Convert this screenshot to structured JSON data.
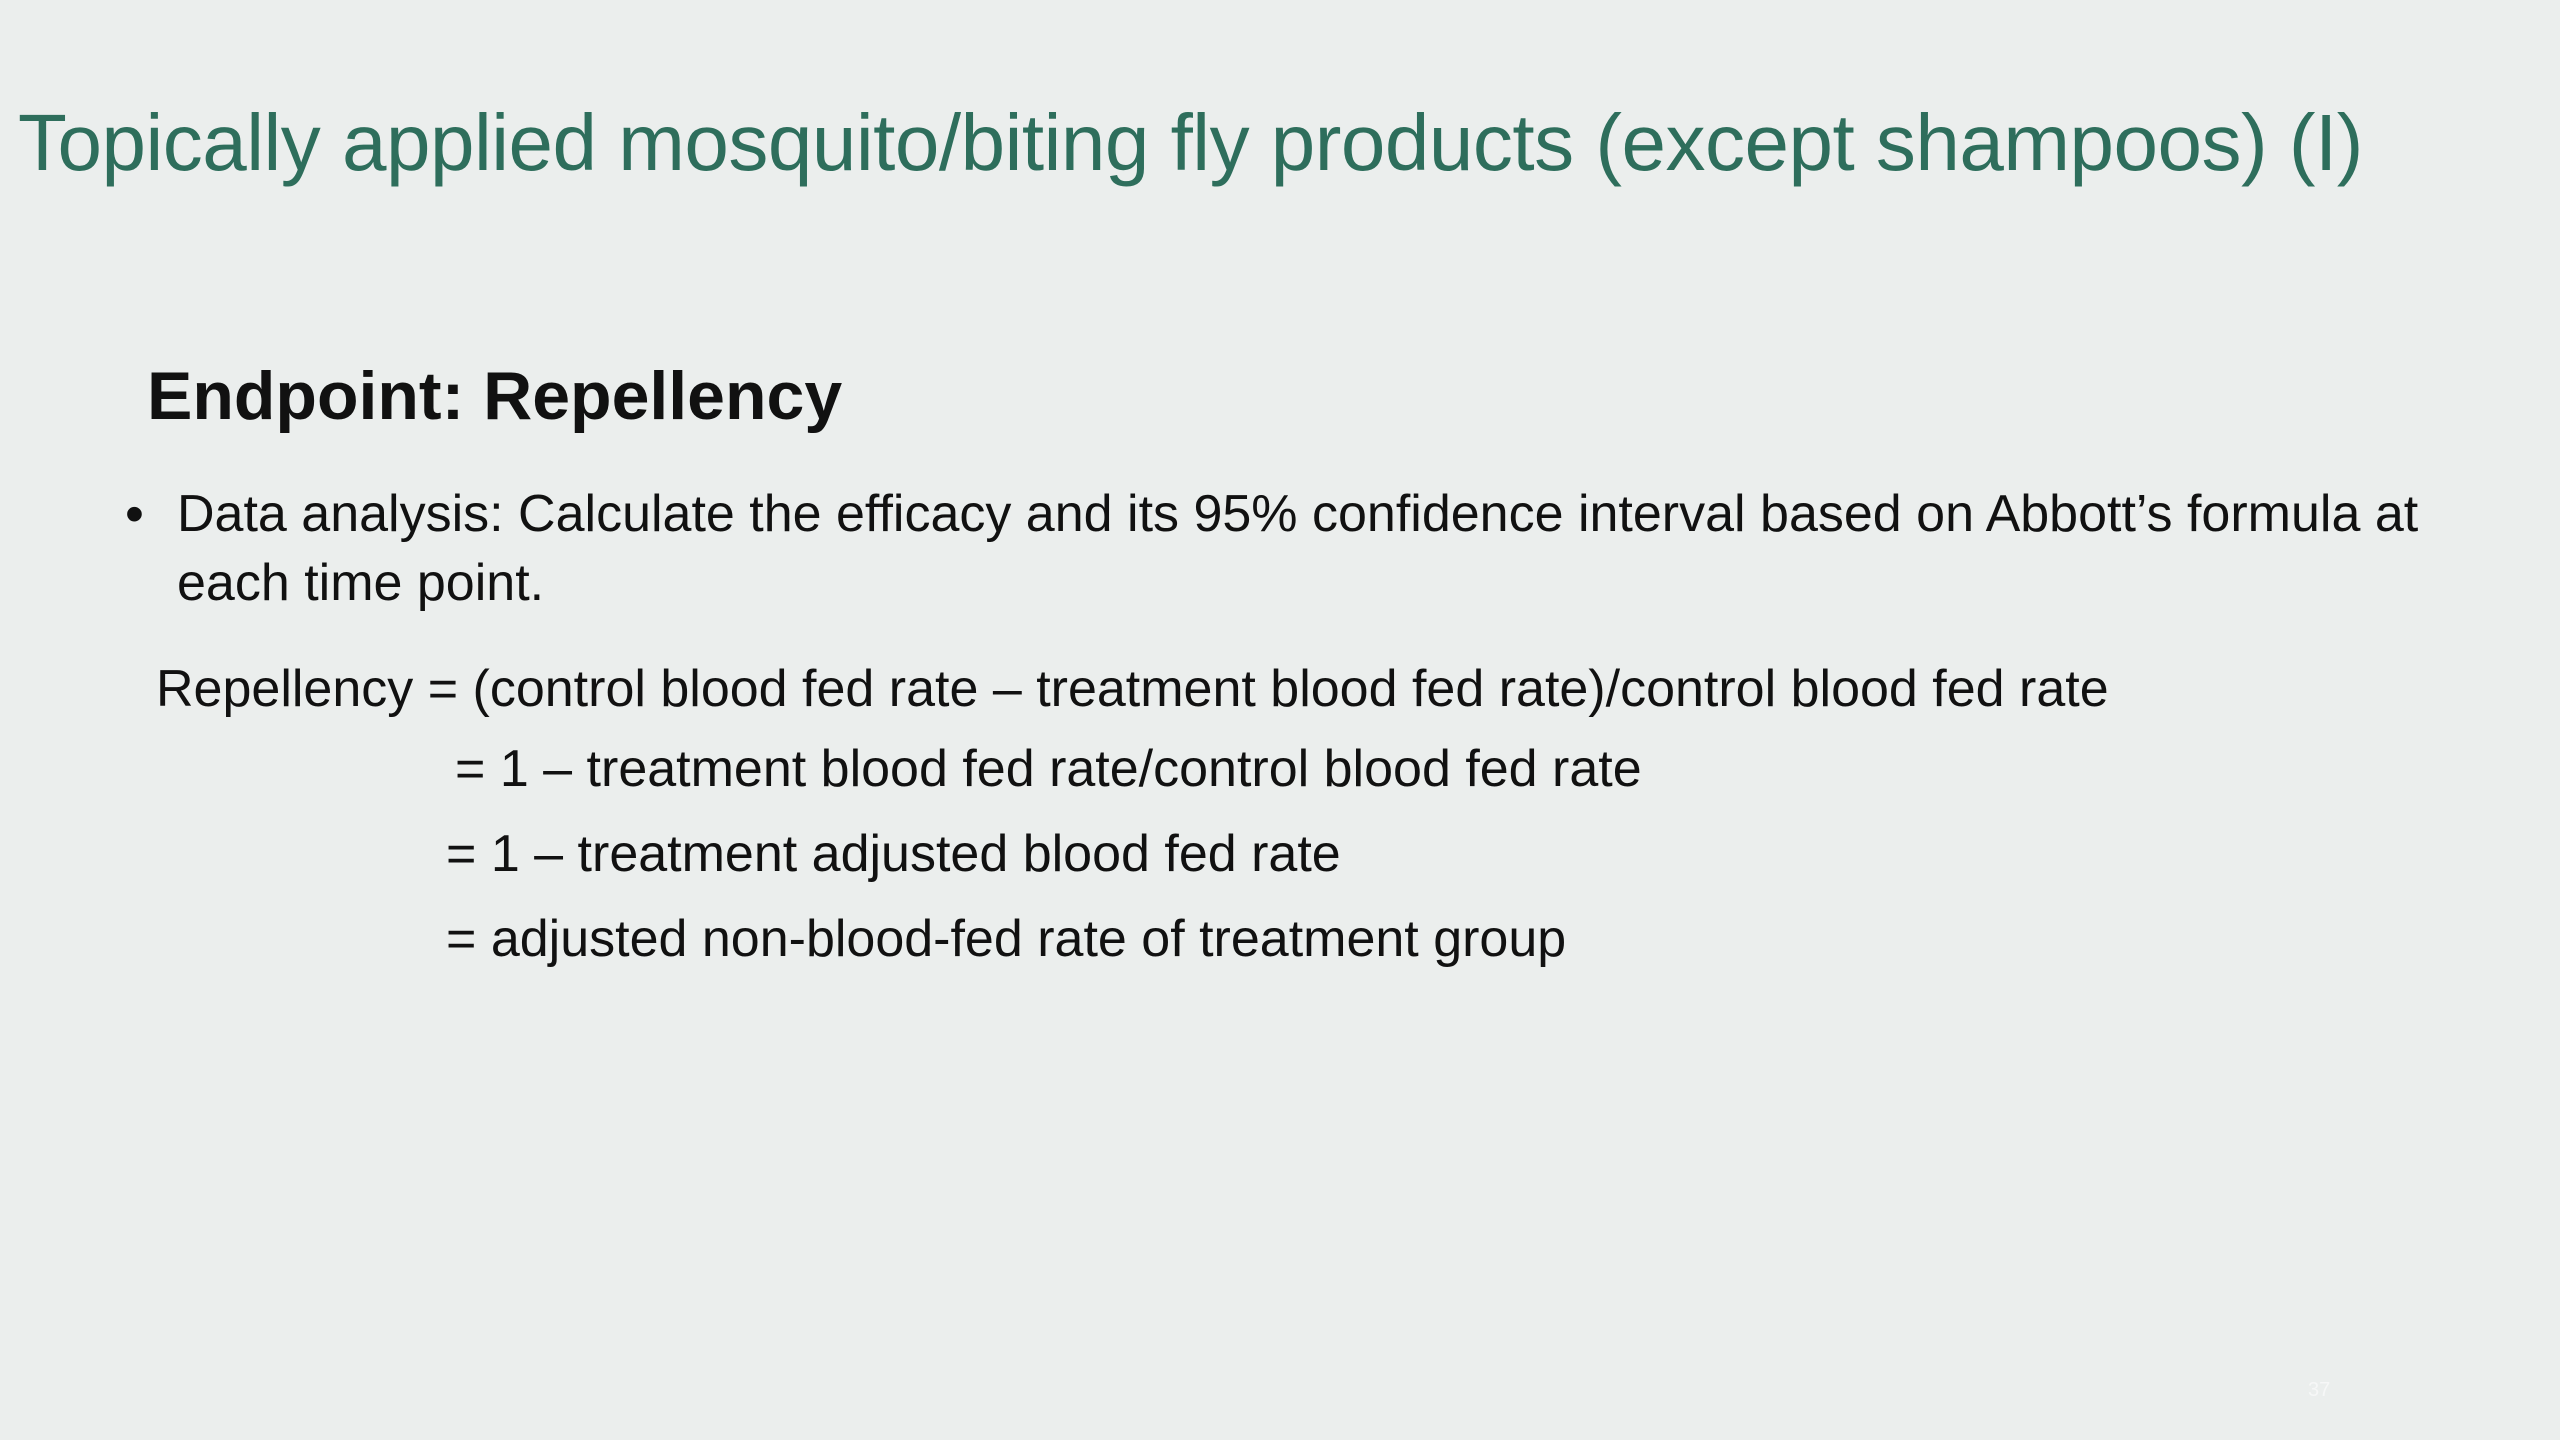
{
  "slide": {
    "title": "Topically applied mosquito/biting fly products (except shampoos) (I)",
    "heading": "Endpoint: Repellency",
    "bullets": [
      {
        "marker": "•",
        "text": "Data analysis: Calculate the efficacy and its 95% confidence interval based on Abbott’s formula at each time point."
      }
    ],
    "formula_lines": [
      "Repellency = (control blood fed rate – treatment blood fed rate)/control blood fed rate",
      "= 1 – treatment blood fed rate/control blood fed rate",
      "= 1 – treatment adjusted blood fed rate",
      "= adjusted non-blood-fed rate of treatment group"
    ],
    "page_number": "37"
  },
  "colors": {
    "background": "#ebeeed",
    "title": "#2e6e5c",
    "text": "#111111"
  }
}
